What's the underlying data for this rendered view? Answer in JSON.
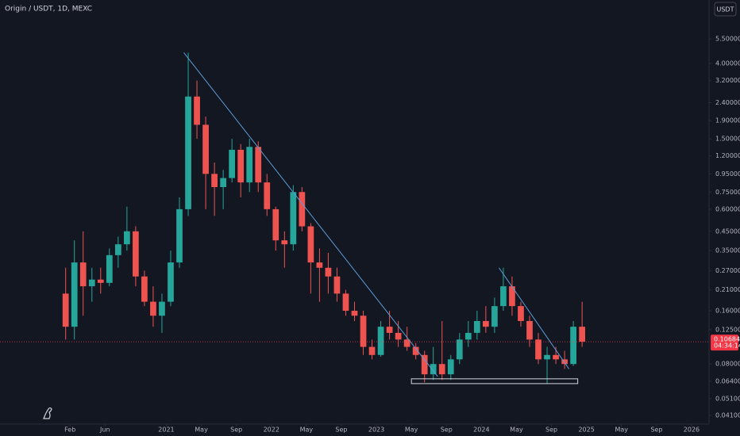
{
  "chart_data": {
    "type": "candlestick",
    "title": "Origin / USDT, 1D, MEXC",
    "currency_button": "USDT",
    "log_scale": true,
    "up_color": "#26a69a",
    "down_color": "#ef5350",
    "xlim": [
      "2019-06",
      "2026-03"
    ],
    "ylim": [
      0.0366,
      9.13
    ],
    "xticks": [
      {
        "value": "2020-02",
        "label": "Feb"
      },
      {
        "value": "2020-06",
        "label": "Jun"
      },
      {
        "value": "2021-01",
        "label": "2021"
      },
      {
        "value": "2021-05",
        "label": "May"
      },
      {
        "value": "2021-09",
        "label": "Sep"
      },
      {
        "value": "2022-01",
        "label": "2022"
      },
      {
        "value": "2022-05",
        "label": "May"
      },
      {
        "value": "2022-09",
        "label": "Sep"
      },
      {
        "value": "2023-01",
        "label": "2023"
      },
      {
        "value": "2023-05",
        "label": "May"
      },
      {
        "value": "2023-09",
        "label": "Sep"
      },
      {
        "value": "2024-01",
        "label": "2024"
      },
      {
        "value": "2024-05",
        "label": "May"
      },
      {
        "value": "2024-09",
        "label": "Sep"
      },
      {
        "value": "2025-01",
        "label": "2025"
      },
      {
        "value": "2025-05",
        "label": "May"
      },
      {
        "value": "2025-09",
        "label": "Sep"
      },
      {
        "value": "2026-01",
        "label": "2026"
      }
    ],
    "yticks": [
      {
        "value": 5.5,
        "label": "5.50000"
      },
      {
        "value": 4,
        "label": "4.00000"
      },
      {
        "value": 3.2,
        "label": "3.20000"
      },
      {
        "value": 2.4,
        "label": "2.40000"
      },
      {
        "value": 1.9,
        "label": "1.90000"
      },
      {
        "value": 1.5,
        "label": "1.50000"
      },
      {
        "value": 1.2,
        "label": "1.20000"
      },
      {
        "value": 0.95,
        "label": "0.95000"
      },
      {
        "value": 0.75,
        "label": "0.75000"
      },
      {
        "value": 0.6,
        "label": "0.60000"
      },
      {
        "value": 0.45,
        "label": "0.45000"
      },
      {
        "value": 0.35,
        "label": "0.35000"
      },
      {
        "value": 0.27,
        "label": "0.27000"
      },
      {
        "value": 0.21,
        "label": "0.21000"
      },
      {
        "value": 0.16,
        "label": "0.16000"
      },
      {
        "value": 0.125,
        "label": "0.12500"
      },
      {
        "value": 0.08,
        "label": "0.08000"
      },
      {
        "value": 0.064,
        "label": "0.06400"
      },
      {
        "value": 0.051,
        "label": "0.05100"
      },
      {
        "value": 0.041,
        "label": "0.04100"
      }
    ],
    "last_price": 0.10684,
    "countdown": "04:34:14",
    "last_price_color": "#f23645",
    "x": [
      "2020-01",
      "2020-02",
      "2020-03",
      "2020-04",
      "2020-05",
      "2020-06",
      "2020-07",
      "2020-08",
      "2020-09",
      "2020-10",
      "2020-11",
      "2020-12",
      "2021-01",
      "2021-02",
      "2021-03",
      "2021-04",
      "2021-05",
      "2021-06",
      "2021-07",
      "2021-08",
      "2021-09",
      "2021-10",
      "2021-11",
      "2021-12",
      "2022-01",
      "2022-02",
      "2022-03",
      "2022-04",
      "2022-05",
      "2022-06",
      "2022-07",
      "2022-08",
      "2022-09",
      "2022-10",
      "2022-11",
      "2022-12",
      "2023-01",
      "2023-02",
      "2023-03",
      "2023-04",
      "2023-05",
      "2023-06",
      "2023-07",
      "2023-08",
      "2023-09",
      "2023-10",
      "2023-11",
      "2023-12",
      "2024-01",
      "2024-02",
      "2024-03",
      "2024-04",
      "2024-05",
      "2024-06",
      "2024-07",
      "2024-08",
      "2024-09",
      "2024-10",
      "2024-11",
      "2024-12"
    ],
    "open": [
      0.2,
      0.13,
      0.3,
      0.22,
      0.24,
      0.23,
      0.33,
      0.38,
      0.45,
      0.25,
      0.18,
      0.15,
      0.18,
      0.3,
      0.6,
      2.6,
      1.8,
      0.95,
      0.8,
      0.9,
      1.3,
      0.85,
      1.35,
      0.85,
      0.6,
      0.4,
      0.38,
      0.75,
      0.48,
      0.3,
      0.28,
      0.25,
      0.2,
      0.16,
      0.15,
      0.1,
      0.09,
      0.13,
      0.12,
      0.11,
      0.1,
      0.09,
      0.07,
      0.08,
      0.07,
      0.085,
      0.11,
      0.12,
      0.14,
      0.13,
      0.17,
      0.22,
      0.17,
      0.14,
      0.11,
      0.085,
      0.09,
      0.085,
      0.08,
      0.13
    ],
    "high": [
      0.28,
      0.4,
      0.45,
      0.28,
      0.28,
      0.36,
      0.42,
      0.62,
      0.48,
      0.27,
      0.22,
      0.2,
      0.35,
      0.7,
      4.6,
      3.2,
      2.0,
      1.1,
      1.0,
      1.5,
      1.4,
      1.5,
      1.45,
      0.95,
      0.62,
      0.45,
      0.82,
      0.8,
      0.5,
      0.36,
      0.34,
      0.28,
      0.21,
      0.18,
      0.16,
      0.11,
      0.14,
      0.16,
      0.14,
      0.13,
      0.105,
      0.095,
      0.1,
      0.14,
      0.09,
      0.12,
      0.14,
      0.16,
      0.17,
      0.19,
      0.28,
      0.25,
      0.18,
      0.15,
      0.12,
      0.1,
      0.1,
      0.095,
      0.14,
      0.18
    ],
    "low": [
      0.11,
      0.11,
      0.15,
      0.18,
      0.2,
      0.22,
      0.28,
      0.35,
      0.22,
      0.17,
      0.13,
      0.12,
      0.17,
      0.28,
      0.55,
      1.5,
      0.6,
      0.55,
      0.6,
      0.85,
      0.7,
      0.75,
      0.75,
      0.55,
      0.35,
      0.28,
      0.35,
      0.45,
      0.2,
      0.18,
      0.2,
      0.18,
      0.15,
      0.14,
      0.09,
      0.085,
      0.088,
      0.11,
      0.1,
      0.095,
      0.085,
      0.063,
      0.065,
      0.065,
      0.065,
      0.08,
      0.1,
      0.11,
      0.12,
      0.12,
      0.16,
      0.15,
      0.13,
      0.1,
      0.08,
      0.062,
      0.08,
      0.075,
      0.078,
      0.1
    ],
    "close": [
      0.13,
      0.3,
      0.22,
      0.24,
      0.23,
      0.33,
      0.38,
      0.45,
      0.25,
      0.18,
      0.15,
      0.18,
      0.3,
      0.6,
      2.6,
      1.8,
      0.95,
      0.8,
      0.9,
      1.3,
      0.85,
      1.35,
      0.85,
      0.6,
      0.4,
      0.38,
      0.75,
      0.48,
      0.3,
      0.28,
      0.25,
      0.2,
      0.16,
      0.15,
      0.1,
      0.09,
      0.13,
      0.12,
      0.11,
      0.1,
      0.09,
      0.07,
      0.08,
      0.07,
      0.085,
      0.11,
      0.12,
      0.14,
      0.13,
      0.17,
      0.22,
      0.17,
      0.14,
      0.11,
      0.085,
      0.09,
      0.085,
      0.08,
      0.13,
      0.107
    ],
    "trendlines": [
      {
        "from": [
          "2021-03",
          4.6
        ],
        "to": [
          "2023-08",
          0.068
        ],
        "color": "#5b9bd5"
      },
      {
        "from": [
          "2024-03",
          0.28
        ],
        "to": [
          "2024-11",
          0.075
        ],
        "color": "#5b9bd5"
      }
    ],
    "zone": {
      "from": [
        "2023-05",
        0.066
      ],
      "to": [
        "2024-12",
        0.062
      ],
      "color": "#d1d4dc"
    }
  }
}
